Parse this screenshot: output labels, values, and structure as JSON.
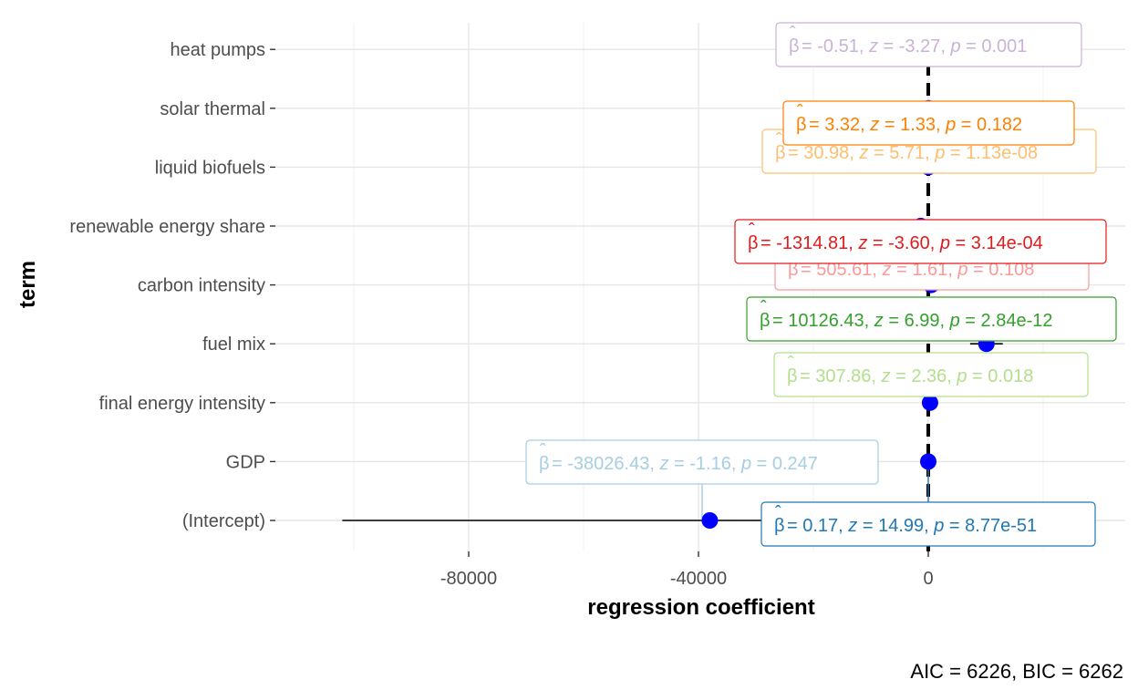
{
  "chart_data": {
    "type": "scatter",
    "title": "",
    "xlabel": "regression coefficient",
    "ylabel": "term",
    "caption": "AIC = 6226, BIC = 6262",
    "xlim": [
      -107000,
      26000
    ],
    "x_ticks": [
      -80000,
      -40000,
      0
    ],
    "x_tick_labels": [
      "-80000",
      "-40000",
      "0"
    ],
    "reference_line": 0,
    "grid": true,
    "terms": [
      {
        "term": "(Intercept)",
        "estimate": -38026.43,
        "ci": [
          -102000,
          25000
        ],
        "color": "#a6cee3",
        "label": {
          "beta": "-38026.43",
          "z": "-1.16",
          "p": "0.247"
        }
      },
      {
        "term": "GDP",
        "estimate": 0.17,
        "ci": [
          0.15,
          0.19
        ],
        "color": "#1f78b4",
        "label": {
          "beta": "0.17",
          "z": "14.99",
          "p": "8.77e-51"
        }
      },
      {
        "term": "final energy intensity",
        "estimate": 307.86,
        "ci": [
          52,
          564
        ],
        "color": "#b2df8a",
        "label": {
          "beta": "307.86",
          "z": "2.36",
          "p": "0.018"
        }
      },
      {
        "term": "fuel mix",
        "estimate": 10126.43,
        "ci": [
          7287,
          12966
        ],
        "color": "#33a02c",
        "label": {
          "beta": "10126.43",
          "z": "6.99",
          "p": "2.84e-12"
        }
      },
      {
        "term": "carbon intensity",
        "estimate": 505.61,
        "ci": [
          -111,
          1122
        ],
        "color": "#fb9a99",
        "label": {
          "beta": "505.61",
          "z": "1.61",
          "p": "0.108"
        }
      },
      {
        "term": "renewable energy share",
        "estimate": -1314.81,
        "ci": [
          -2030,
          -599
        ],
        "color": "#e31a1c",
        "label": {
          "beta": "-1314.81",
          "z": "-3.60",
          "p": "3.14e-04"
        }
      },
      {
        "term": "liquid biofuels",
        "estimate": 30.98,
        "ci": [
          20,
          42
        ],
        "color": "#fdbf6f",
        "label": {
          "beta": "30.98",
          "z": "5.71",
          "p": "1.13e-08"
        }
      },
      {
        "term": "solar thermal",
        "estimate": 3.32,
        "ci": [
          -1.6,
          8.2
        ],
        "color": "#ff7f00",
        "label": {
          "beta": "3.32",
          "z": "1.33",
          "p": "0.182"
        }
      },
      {
        "term": "heat pumps",
        "estimate": -0.51,
        "ci": [
          -0.82,
          -0.2
        ],
        "color": "#cab2d6",
        "label": {
          "beta": "-0.51",
          "z": "-3.27",
          "p": "0.001"
        }
      }
    ],
    "point_color": "#0000ff"
  }
}
